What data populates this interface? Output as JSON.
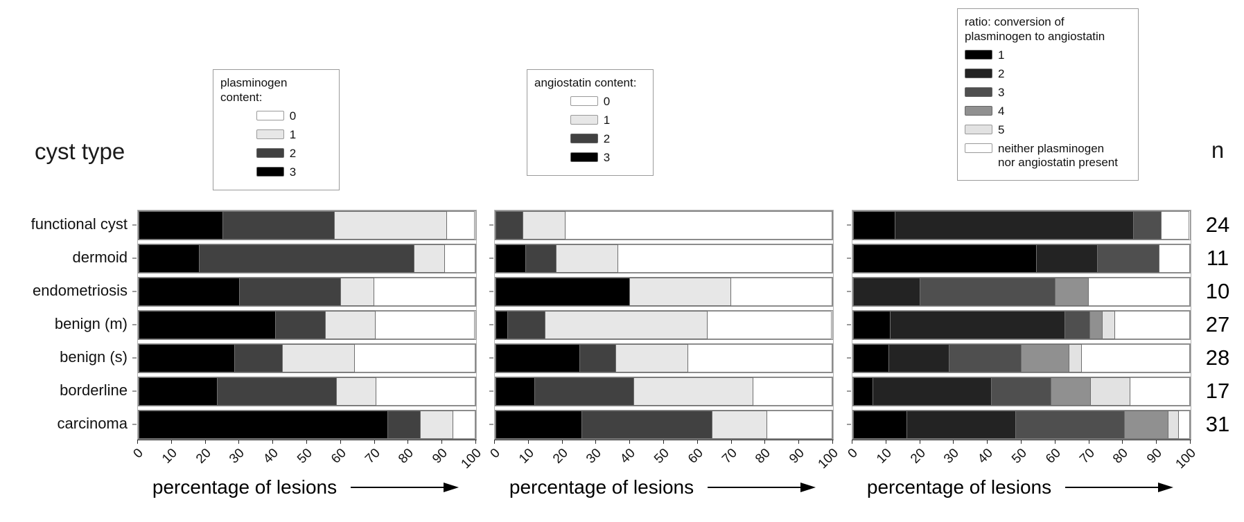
{
  "header": {
    "cyst_type": "cyst type",
    "n": "n"
  },
  "axis": {
    "xlabel": "percentage of lesions",
    "tick_labels": [
      "0",
      "10",
      "20",
      "30",
      "40",
      "50",
      "60",
      "70",
      "80",
      "90",
      "100"
    ]
  },
  "categories": [
    "functional cyst",
    "dermoid",
    "endometriosis",
    "benign (m)",
    "benign (s)",
    "borderline",
    "carcinoma"
  ],
  "n_values": [
    "24",
    "11",
    "10",
    "27",
    "28",
    "17",
    "31"
  ],
  "legends": [
    {
      "title_lines": "plasminogen content:",
      "items": [
        {
          "label": "0",
          "color": "#ffffff"
        },
        {
          "label": "1",
          "color": "#e7e7e7"
        },
        {
          "label": "2",
          "color": "#414141"
        },
        {
          "label": "3",
          "color": "#000000"
        }
      ]
    },
    {
      "title_lines": "angiostatin content:",
      "items": [
        {
          "label": "0",
          "color": "#ffffff"
        },
        {
          "label": "1",
          "color": "#e7e7e7"
        },
        {
          "label": "2",
          "color": "#414141"
        },
        {
          "label": "3",
          "color": "#000000"
        }
      ]
    },
    {
      "title_lines": "ratio: conversion of\nplasminogen to angiostatin",
      "items": [
        {
          "label": "1",
          "color": "#000000"
        },
        {
          "label": "2",
          "color": "#232323"
        },
        {
          "label": "3",
          "color": "#4f4f4f"
        },
        {
          "label": "4",
          "color": "#909090"
        },
        {
          "label": "5",
          "color": "#e2e2e2"
        },
        {
          "label": "neither plasminogen\nnor angiostatin present",
          "color": "#ffffff"
        }
      ]
    }
  ],
  "chart_data": [
    {
      "type": "bar",
      "subtype": "horizontal-stacked",
      "name": "plasminogen",
      "title": "plasminogen content",
      "xlabel": "percentage of lesions",
      "xlim": [
        0,
        100
      ],
      "xticks": [
        0,
        10,
        20,
        30,
        40,
        50,
        60,
        70,
        80,
        90,
        100
      ],
      "categories": [
        "functional cyst",
        "dermoid",
        "endometriosis",
        "benign (m)",
        "benign (s)",
        "borderline",
        "carcinoma"
      ],
      "series": [
        {
          "name": "3",
          "color": "#000000",
          "values": [
            25.0,
            18.2,
            30.0,
            40.7,
            28.6,
            23.5,
            74.2
          ]
        },
        {
          "name": "2",
          "color": "#414141",
          "values": [
            33.3,
            63.6,
            30.0,
            14.8,
            14.3,
            35.3,
            9.7
          ]
        },
        {
          "name": "1",
          "color": "#e7e7e7",
          "values": [
            33.3,
            9.1,
            10.0,
            14.8,
            21.4,
            11.8,
            9.7
          ]
        },
        {
          "name": "0",
          "color": "#ffffff",
          "values": [
            8.3,
            9.1,
            30.0,
            29.6,
            35.7,
            29.4,
            6.5
          ]
        }
      ]
    },
    {
      "type": "bar",
      "subtype": "horizontal-stacked",
      "name": "angiostatin",
      "title": "angiostatin content",
      "xlabel": "percentage of lesions",
      "xlim": [
        0,
        100
      ],
      "xticks": [
        0,
        10,
        20,
        30,
        40,
        50,
        60,
        70,
        80,
        90,
        100
      ],
      "categories": [
        "functional cyst",
        "dermoid",
        "endometriosis",
        "benign (m)",
        "benign (s)",
        "borderline",
        "carcinoma"
      ],
      "series": [
        {
          "name": "3",
          "color": "#000000",
          "values": [
            0,
            9.1,
            40.0,
            3.7,
            25.0,
            11.8,
            25.8
          ]
        },
        {
          "name": "2",
          "color": "#414141",
          "values": [
            8.3,
            9.1,
            0,
            11.1,
            10.7,
            29.4,
            38.7
          ]
        },
        {
          "name": "1",
          "color": "#e7e7e7",
          "values": [
            12.5,
            18.2,
            30.0,
            48.1,
            21.4,
            35.3,
            16.1
          ]
        },
        {
          "name": "0",
          "color": "#ffffff",
          "values": [
            79.2,
            63.6,
            30.0,
            37.0,
            42.9,
            23.5,
            19.4
          ]
        }
      ]
    },
    {
      "type": "bar",
      "subtype": "horizontal-stacked",
      "name": "ratio",
      "title": "ratio: conversion of plasminogen to angiostatin",
      "xlabel": "percentage of lesions",
      "xlim": [
        0,
        100
      ],
      "xticks": [
        0,
        10,
        20,
        30,
        40,
        50,
        60,
        70,
        80,
        90,
        100
      ],
      "categories": [
        "functional cyst",
        "dermoid",
        "endometriosis",
        "benign (m)",
        "benign (s)",
        "borderline",
        "carcinoma"
      ],
      "series": [
        {
          "name": "1",
          "color": "#000000",
          "values": [
            12.5,
            54.5,
            0,
            11.1,
            10.7,
            5.9,
            16.1
          ]
        },
        {
          "name": "2",
          "color": "#232323",
          "values": [
            70.8,
            18.2,
            20.0,
            51.9,
            17.9,
            35.3,
            32.3
          ]
        },
        {
          "name": "3",
          "color": "#4f4f4f",
          "values": [
            8.3,
            18.2,
            40.0,
            7.4,
            21.4,
            17.6,
            32.3
          ]
        },
        {
          "name": "4",
          "color": "#909090",
          "values": [
            0,
            0,
            10.0,
            3.7,
            14.3,
            11.8,
            12.9
          ]
        },
        {
          "name": "5",
          "color": "#e2e2e2",
          "values": [
            0,
            0,
            0,
            3.7,
            3.6,
            11.8,
            3.2
          ]
        },
        {
          "name": "neither plasminogen nor angiostatin present",
          "color": "#ffffff",
          "values": [
            8.3,
            9.1,
            30.0,
            22.2,
            32.1,
            17.6,
            3.2
          ]
        }
      ]
    }
  ]
}
